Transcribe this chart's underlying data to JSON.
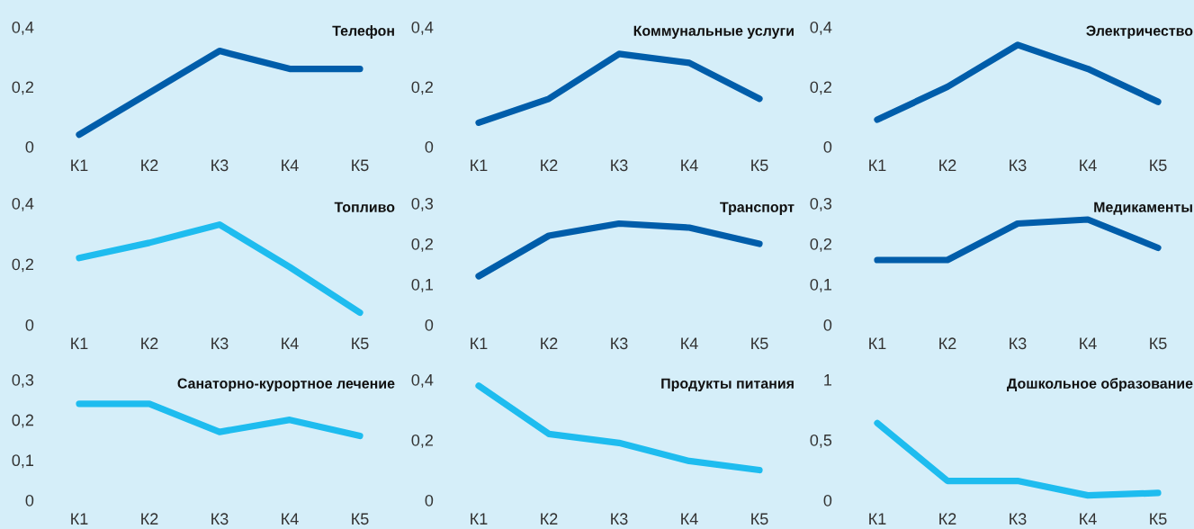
{
  "chart_data": [
    {
      "type": "line",
      "title": "Телефон",
      "categories": [
        "К1",
        "К2",
        "К3",
        "К4",
        "К5"
      ],
      "series": [
        {
          "color": "#005daa",
          "values": [
            0.04,
            0.18,
            0.32,
            0.26,
            0.26
          ]
        }
      ],
      "ylim": [
        0,
        0.4
      ],
      "yticks": [
        0,
        {
          "value": 0.2,
          "label": "0,2"
        },
        {
          "value": 0.4,
          "label": "0,4"
        }
      ]
    },
    {
      "type": "line",
      "title": "Коммунальные услуги",
      "categories": [
        "К1",
        "К2",
        "К3",
        "К4",
        "К5"
      ],
      "series": [
        {
          "color": "#005daa",
          "values": [
            0.08,
            0.16,
            0.31,
            0.28,
            0.16
          ]
        }
      ],
      "ylim": [
        0,
        0.4
      ],
      "yticks": [
        0,
        {
          "value": 0.2,
          "label": "0,2"
        },
        {
          "value": 0.4,
          "label": "0,4"
        }
      ]
    },
    {
      "type": "line",
      "title": "Электричество",
      "categories": [
        "К1",
        "К2",
        "К3",
        "К4",
        "К5"
      ],
      "series": [
        {
          "color": "#005daa",
          "values": [
            0.09,
            0.2,
            0.34,
            0.26,
            0.15
          ]
        }
      ],
      "ylim": [
        0,
        0.4
      ],
      "yticks": [
        0,
        {
          "value": 0.2,
          "label": "0,2"
        },
        {
          "value": 0.4,
          "label": "0,4"
        }
      ]
    },
    {
      "type": "line",
      "title": "Топливо",
      "categories": [
        "К1",
        "К2",
        "К3",
        "К4",
        "К5"
      ],
      "series": [
        {
          "color": "#1ebcef",
          "values": [
            0.22,
            0.27,
            0.33,
            0.19,
            0.04
          ]
        }
      ],
      "ylim": [
        0,
        0.4
      ],
      "yticks": [
        0,
        {
          "value": 0.2,
          "label": "0,2"
        },
        {
          "value": 0.4,
          "label": "0,4"
        }
      ]
    },
    {
      "type": "line",
      "title": "Транспорт",
      "categories": [
        "К1",
        "К2",
        "К3",
        "К4",
        "К5"
      ],
      "series": [
        {
          "color": "#005daa",
          "values": [
            0.12,
            0.22,
            0.25,
            0.24,
            0.2
          ]
        }
      ],
      "ylim": [
        0,
        0.3
      ],
      "yticks": [
        0,
        {
          "value": 0.1,
          "label": "0,1"
        },
        {
          "value": 0.2,
          "label": "0,2"
        },
        {
          "value": 0.3,
          "label": "0,3"
        }
      ]
    },
    {
      "type": "line",
      "title": "Медикаменты",
      "categories": [
        "К1",
        "К2",
        "К3",
        "К4",
        "К5"
      ],
      "series": [
        {
          "color": "#005daa",
          "values": [
            0.16,
            0.16,
            0.25,
            0.26,
            0.19
          ]
        }
      ],
      "ylim": [
        0,
        0.3
      ],
      "yticks": [
        0,
        {
          "value": 0.1,
          "label": "0,1"
        },
        {
          "value": 0.2,
          "label": "0,2"
        },
        {
          "value": 0.3,
          "label": "0,3"
        }
      ]
    },
    {
      "type": "line",
      "title": "Санаторно-курортное лечение",
      "categories": [
        "К1",
        "К2",
        "К3",
        "К4",
        "К5"
      ],
      "series": [
        {
          "color": "#1ebcef",
          "values": [
            0.24,
            0.24,
            0.17,
            0.2,
            0.16
          ]
        }
      ],
      "ylim": [
        0,
        0.3
      ],
      "yticks": [
        0,
        {
          "value": 0.1,
          "label": "0,1"
        },
        {
          "value": 0.2,
          "label": "0,2"
        },
        {
          "value": 0.3,
          "label": "0,3"
        }
      ]
    },
    {
      "type": "line",
      "title": "Продукты питания",
      "categories": [
        "К1",
        "К2",
        "К3",
        "К4",
        "К5"
      ],
      "series": [
        {
          "color": "#1ebcef",
          "values": [
            0.38,
            0.22,
            0.19,
            0.13,
            0.1
          ]
        }
      ],
      "ylim": [
        0,
        0.4
      ],
      "yticks": [
        0,
        {
          "value": 0.2,
          "label": "0,2"
        },
        {
          "value": 0.4,
          "label": "0,4"
        }
      ]
    },
    {
      "type": "line",
      "title": "Дошкольное образование",
      "categories": [
        "К1",
        "К2",
        "К3",
        "К4",
        "К5"
      ],
      "series": [
        {
          "color": "#1ebcef",
          "values": [
            0.64,
            0.16,
            0.16,
            0.04,
            0.06
          ]
        }
      ],
      "ylim": [
        0,
        1
      ],
      "yticks": [
        0,
        {
          "value": 0.5,
          "label": "0,5"
        },
        1
      ]
    }
  ]
}
